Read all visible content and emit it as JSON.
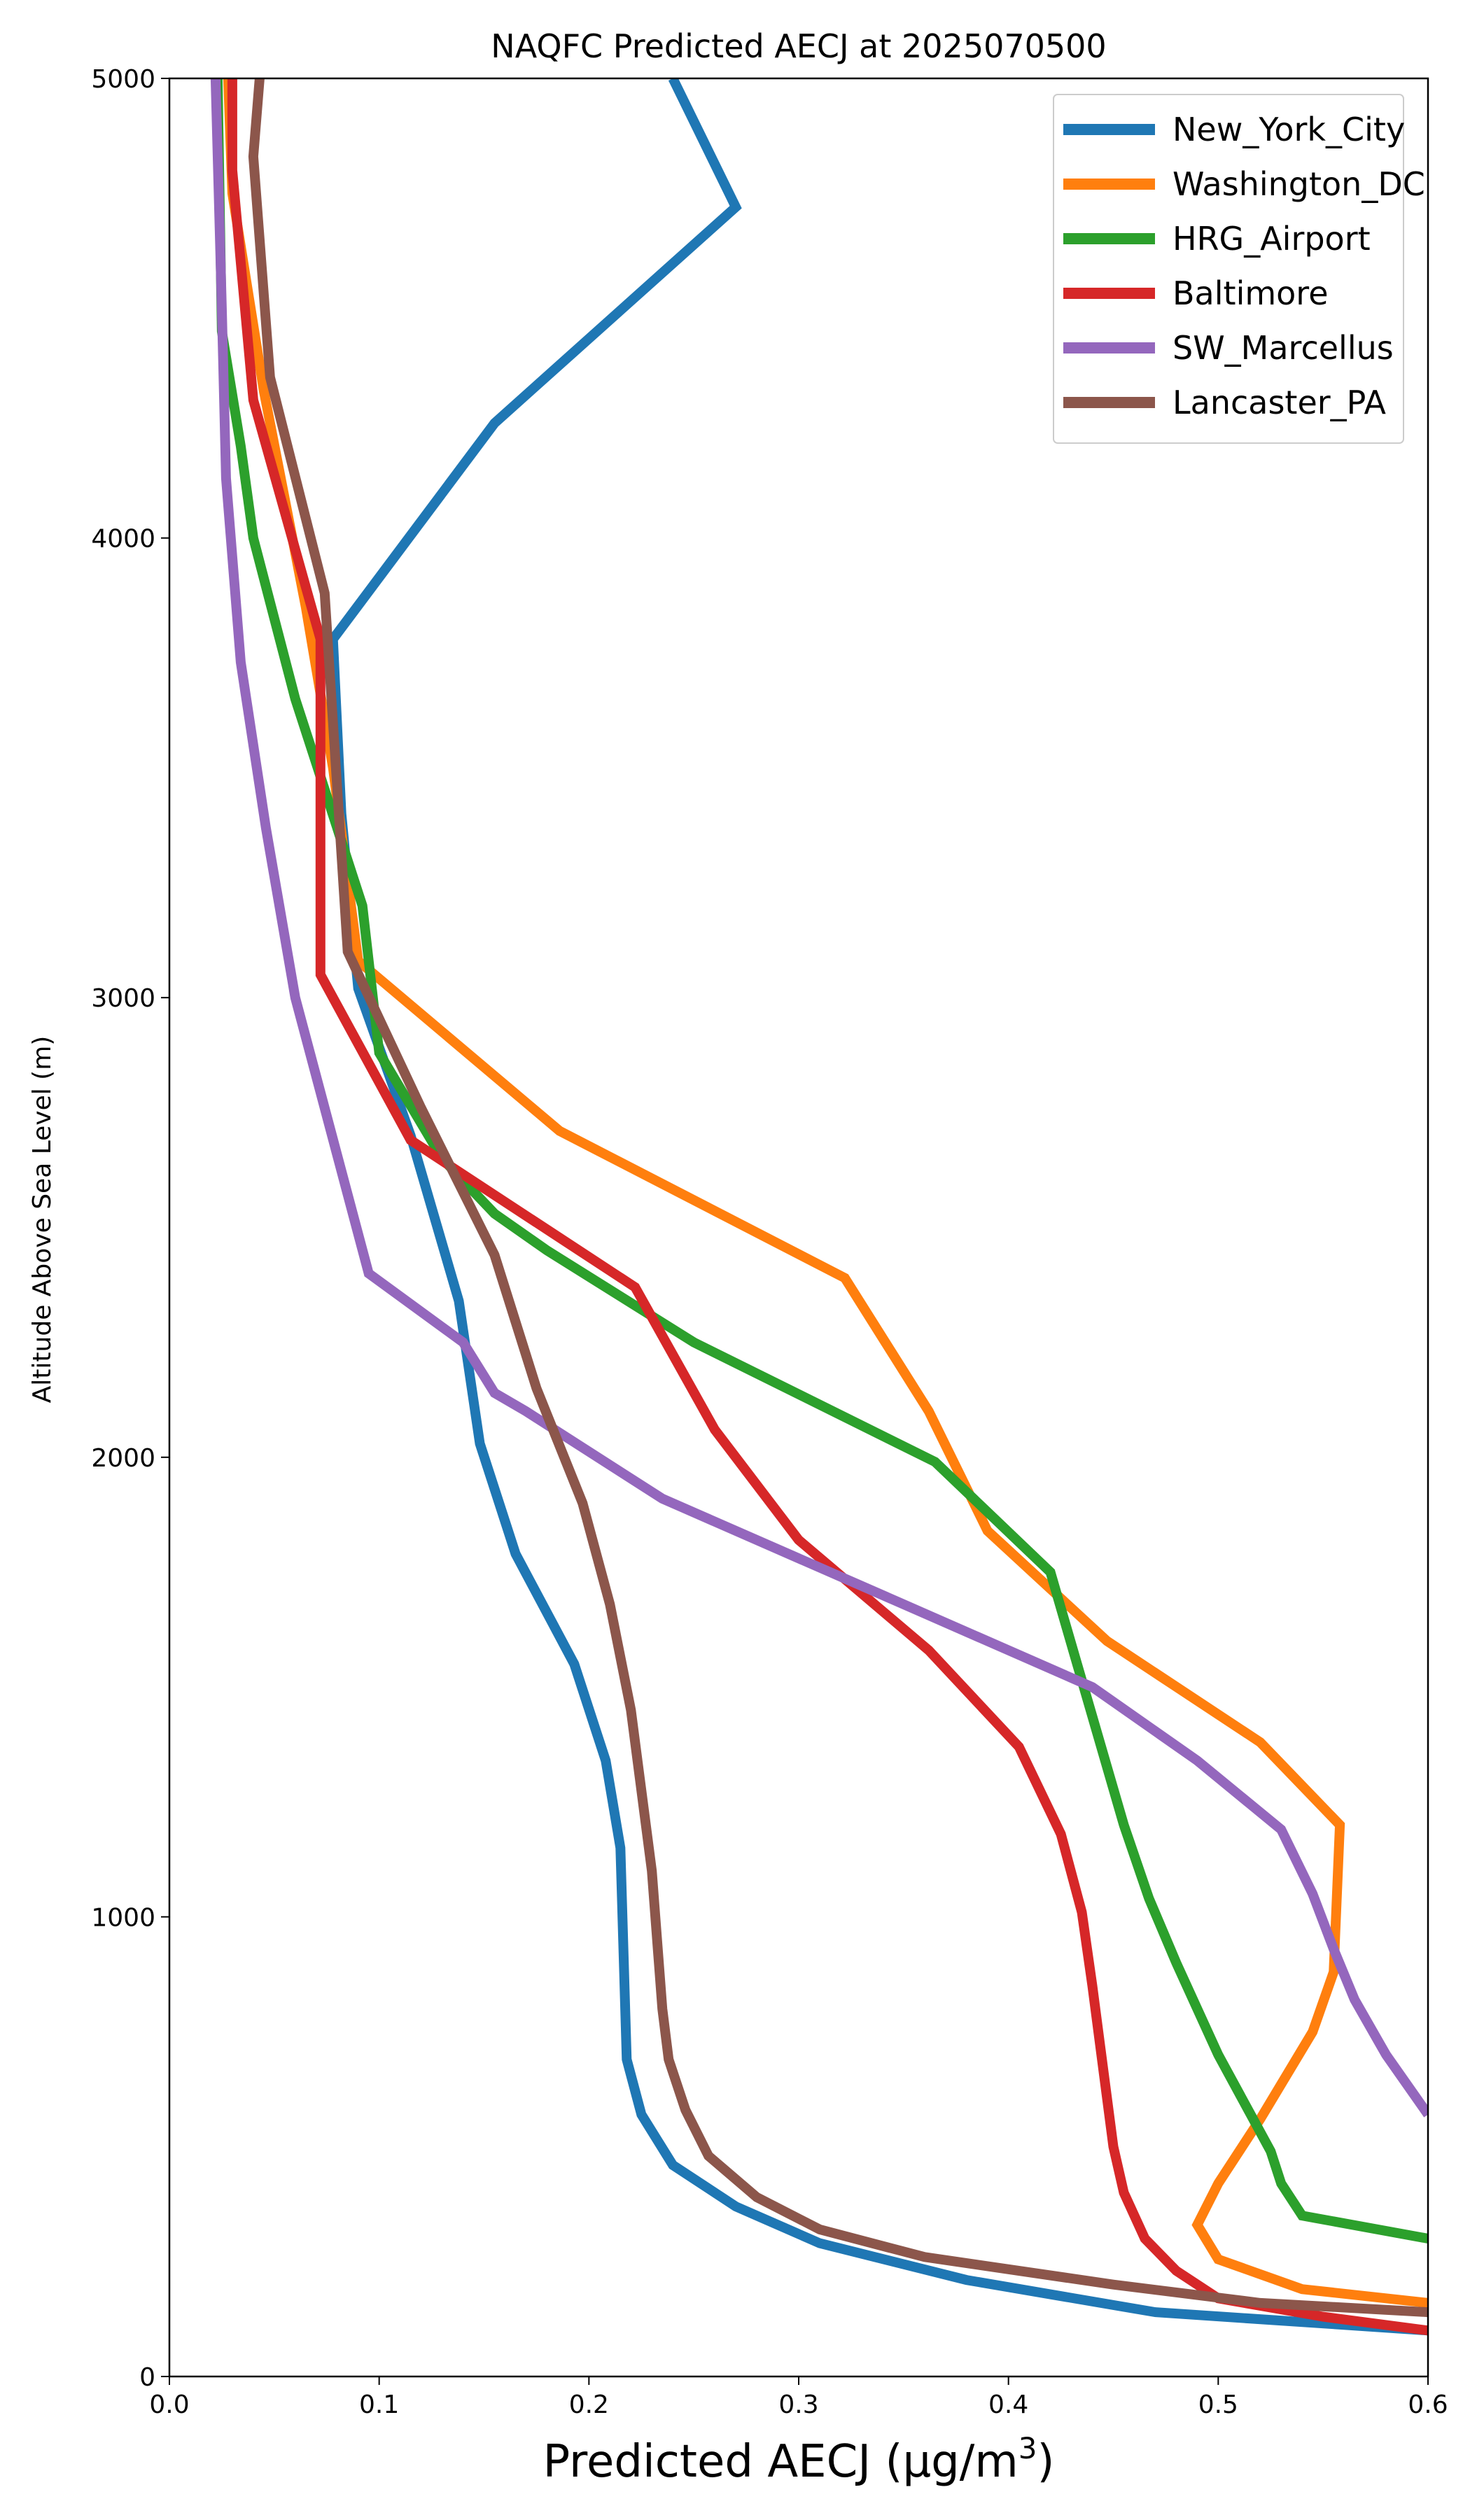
{
  "chart_data": {
    "type": "line",
    "title": "NAQFC Predicted AECJ at 2025070500",
    "xlabel": "Predicted AECJ (μg/m³)",
    "ylabel": "Altitude Above Sea Level (m)",
    "xlim": [
      0.0,
      0.6
    ],
    "ylim": [
      0,
      5000
    ],
    "xticks": [
      "0.0",
      "0.1",
      "0.2",
      "0.3",
      "0.4",
      "0.5",
      "0.6"
    ],
    "yticks": [
      "0",
      "1000",
      "2000",
      "3000",
      "4000",
      "5000"
    ],
    "grid": false,
    "legend_position": "top-right",
    "series": [
      {
        "name": "New_York_City",
        "color": "#1f77b4",
        "points": [
          [
            0.6,
            100
          ],
          [
            0.47,
            140
          ],
          [
            0.38,
            210
          ],
          [
            0.31,
            290
          ],
          [
            0.27,
            370
          ],
          [
            0.24,
            460
          ],
          [
            0.225,
            570
          ],
          [
            0.218,
            690
          ],
          [
            0.215,
            1150
          ],
          [
            0.208,
            1340
          ],
          [
            0.193,
            1550
          ],
          [
            0.165,
            1790
          ],
          [
            0.148,
            2030
          ],
          [
            0.138,
            2340
          ],
          [
            0.115,
            2700
          ],
          [
            0.09,
            3020
          ],
          [
            0.082,
            3400
          ],
          [
            0.078,
            3780
          ],
          [
            0.155,
            4250
          ],
          [
            0.27,
            4720
          ],
          [
            0.24,
            5000
          ]
        ]
      },
      {
        "name": "Washington_DC",
        "color": "#ff7f0e",
        "points": [
          [
            0.6,
            160
          ],
          [
            0.54,
            190
          ],
          [
            0.5,
            255
          ],
          [
            0.49,
            330
          ],
          [
            0.5,
            420
          ],
          [
            0.52,
            560
          ],
          [
            0.545,
            750
          ],
          [
            0.555,
            880
          ],
          [
            0.558,
            1200
          ],
          [
            0.52,
            1380
          ],
          [
            0.447,
            1600
          ],
          [
            0.39,
            1840
          ],
          [
            0.362,
            2100
          ],
          [
            0.322,
            2390
          ],
          [
            0.186,
            2710
          ],
          [
            0.09,
            3080
          ],
          [
            0.078,
            3500
          ],
          [
            0.065,
            3850
          ],
          [
            0.045,
            4320
          ],
          [
            0.03,
            4750
          ],
          [
            0.028,
            5000
          ]
        ]
      },
      {
        "name": "HRG_Airport",
        "color": "#2ca02c",
        "points": [
          [
            0.6,
            300
          ],
          [
            0.54,
            350
          ],
          [
            0.53,
            420
          ],
          [
            0.525,
            490
          ],
          [
            0.5,
            700
          ],
          [
            0.48,
            900
          ],
          [
            0.467,
            1040
          ],
          [
            0.455,
            1200
          ],
          [
            0.42,
            1750
          ],
          [
            0.365,
            1990
          ],
          [
            0.25,
            2250
          ],
          [
            0.18,
            2450
          ],
          [
            0.155,
            2530
          ],
          [
            0.13,
            2650
          ],
          [
            0.1,
            2880
          ],
          [
            0.092,
            3200
          ],
          [
            0.06,
            3650
          ],
          [
            0.04,
            4000
          ],
          [
            0.034,
            4200
          ],
          [
            0.025,
            4450
          ],
          [
            0.023,
            5000
          ]
        ]
      },
      {
        "name": "Baltimore",
        "color": "#d62728",
        "points": [
          [
            0.6,
            100
          ],
          [
            0.55,
            130
          ],
          [
            0.5,
            170
          ],
          [
            0.48,
            230
          ],
          [
            0.465,
            300
          ],
          [
            0.455,
            400
          ],
          [
            0.45,
            500
          ],
          [
            0.44,
            850
          ],
          [
            0.435,
            1010
          ],
          [
            0.425,
            1180
          ],
          [
            0.405,
            1370
          ],
          [
            0.362,
            1580
          ],
          [
            0.3,
            1820
          ],
          [
            0.26,
            2060
          ],
          [
            0.222,
            2370
          ],
          [
            0.115,
            2690
          ],
          [
            0.072,
            3050
          ],
          [
            0.072,
            3780
          ],
          [
            0.04,
            4300
          ],
          [
            0.03,
            4800
          ],
          [
            0.03,
            5000
          ]
        ]
      },
      {
        "name": "SW_Marcellus",
        "color": "#9467bd",
        "points": [
          [
            0.6,
            570
          ],
          [
            0.58,
            700
          ],
          [
            0.565,
            820
          ],
          [
            0.555,
            930
          ],
          [
            0.545,
            1050
          ],
          [
            0.53,
            1190
          ],
          [
            0.49,
            1340
          ],
          [
            0.44,
            1500
          ],
          [
            0.36,
            1660
          ],
          [
            0.31,
            1760
          ],
          [
            0.235,
            1910
          ],
          [
            0.17,
            2100
          ],
          [
            0.155,
            2140
          ],
          [
            0.14,
            2250
          ],
          [
            0.095,
            2400
          ],
          [
            0.06,
            3000
          ],
          [
            0.046,
            3370
          ],
          [
            0.034,
            3730
          ],
          [
            0.027,
            4130
          ],
          [
            0.025,
            4500
          ],
          [
            0.022,
            5000
          ]
        ]
      },
      {
        "name": "Lancaster_PA",
        "color": "#8c564b",
        "points": [
          [
            0.6,
            140
          ],
          [
            0.52,
            160
          ],
          [
            0.45,
            200
          ],
          [
            0.36,
            260
          ],
          [
            0.31,
            320
          ],
          [
            0.28,
            390
          ],
          [
            0.257,
            480
          ],
          [
            0.246,
            580
          ],
          [
            0.238,
            690
          ],
          [
            0.235,
            800
          ],
          [
            0.23,
            1100
          ],
          [
            0.22,
            1450
          ],
          [
            0.21,
            1680
          ],
          [
            0.197,
            1900
          ],
          [
            0.175,
            2150
          ],
          [
            0.155,
            2440
          ],
          [
            0.12,
            2760
          ],
          [
            0.085,
            3100
          ],
          [
            0.074,
            3880
          ],
          [
            0.048,
            4350
          ],
          [
            0.04,
            4830
          ],
          [
            0.043,
            5000
          ]
        ]
      }
    ]
  }
}
